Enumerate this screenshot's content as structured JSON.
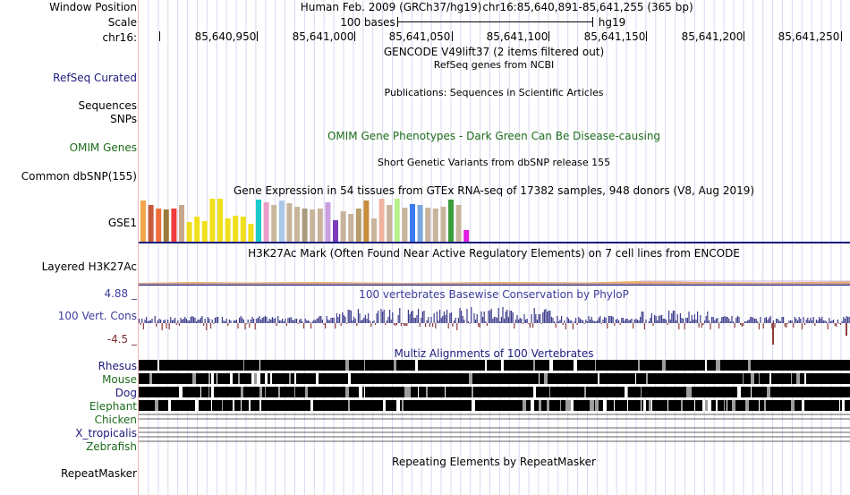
{
  "header": {
    "window_label": "Window Position",
    "scale_label": "Scale",
    "chrom_label": "chr16:",
    "assembly": "Human Feb. 2009 (GRCh37/hg19)",
    "position": "chr16:85,640,891-85,641,255 (365 bp)",
    "scale_text": "100 bases",
    "scale_db": "hg19",
    "ticks": [
      "85,640,950",
      "85,641,000",
      "85,641,050",
      "85,641,100",
      "85,641,150",
      "85,641,200",
      "85,641,250"
    ]
  },
  "tracks": {
    "gencode_title": "GENCODE V49lift37 (2 items filtered out)",
    "refseq_label": "RefSeq Curated",
    "refseq_title": "RefSeq genes from NCBI",
    "pubs_label": "Sequences",
    "pubs_title": "Publications: Sequences in Scientific Articles",
    "snps_label": "SNPs",
    "omim_label": "OMIM Genes",
    "omim_title": "OMIM Gene Phenotypes - Dark Green Can Be Disease-causing",
    "dbsnp_label": "Common dbSNP(155)",
    "dbsnp_title": "Short Genetic Variants from dbSNP release 155",
    "gtex_title": "Gene Expression in 54 tissues from GTEx RNA-seq of 17382 samples, 948 donors (V8, Aug 2019)",
    "gtex_label": "GSE1",
    "h3k27_label": "Layered H3K27Ac",
    "h3k27_title": "H3K27Ac Mark (Often Found Near Active Regulatory Elements) on 7 cell lines from ENCODE",
    "cons_label": "100 Vert. Cons",
    "cons_max": "4.88 _",
    "cons_min": "-4.5 _",
    "cons_title": "100 vertebrates Basewise Conservation by PhyloP",
    "multiz_title": "Multiz Alignments of 100 Vertebrates",
    "species": [
      "Rhesus",
      "Mouse",
      "Dog",
      "Elephant",
      "Chicken",
      "X_tropicalis",
      "Zebrafish"
    ],
    "rmsk_label": "RepeatMasker",
    "rmsk_title": "Repeating Elements by RepeatMasker"
  },
  "gtex_bars": [
    {
      "color": "#f3a64a",
      "value": 0.95
    },
    {
      "color": "#c85a3c",
      "value": 0.85
    },
    {
      "color": "#f06e3c",
      "value": 0.78
    },
    {
      "color": "#9c7b3c",
      "value": 0.75
    },
    {
      "color": "#f03c3c",
      "value": 0.78
    },
    {
      "color": "#c8a88c",
      "value": 0.85
    },
    {
      "color": "#f0e01c",
      "value": 0.45
    },
    {
      "color": "#f0e01c",
      "value": 0.58
    },
    {
      "color": "#f0e01c",
      "value": 0.48
    },
    {
      "color": "#f0e01c",
      "value": 1.0
    },
    {
      "color": "#f0e01c",
      "value": 1.0
    },
    {
      "color": "#f0e01c",
      "value": 0.55
    },
    {
      "color": "#f0e01c",
      "value": 0.6
    },
    {
      "color": "#f0e01c",
      "value": 0.58
    },
    {
      "color": "#f0e01c",
      "value": 0.42
    },
    {
      "color": "#1ccccc",
      "value": 0.98
    },
    {
      "color": "#e8a0c8",
      "value": 0.92
    },
    {
      "color": "#c8b89c",
      "value": 0.85
    },
    {
      "color": "#a8c8e8",
      "value": 0.95
    },
    {
      "color": "#c8b49c",
      "value": 0.9
    },
    {
      "color": "#c8b49c",
      "value": 0.82
    },
    {
      "color": "#a89c7c",
      "value": 0.78
    },
    {
      "color": "#c8b49c",
      "value": 0.75
    },
    {
      "color": "#c8b49c",
      "value": 0.78
    },
    {
      "color": "#c8a0e0",
      "value": 0.92
    },
    {
      "color": "#7c3cbc",
      "value": 0.5
    },
    {
      "color": "#c8b49c",
      "value": 0.7
    },
    {
      "color": "#c8b49c",
      "value": 0.65
    },
    {
      "color": "#b89c6c",
      "value": 0.78
    },
    {
      "color": "#c88c3c",
      "value": 0.95
    },
    {
      "color": "#c8b49c",
      "value": 0.55
    },
    {
      "color": "#f0b4a0",
      "value": 1.0
    },
    {
      "color": "#c8b49c",
      "value": 0.85
    },
    {
      "color": "#b8f08c",
      "value": 1.0
    },
    {
      "color": "#c8b49c",
      "value": 0.8
    },
    {
      "color": "#3c7cf0",
      "value": 0.88
    },
    {
      "color": "#7ca8e0",
      "value": 0.85
    },
    {
      "color": "#c8b49c",
      "value": 0.8
    },
    {
      "color": "#c8b49c",
      "value": 0.78
    },
    {
      "color": "#c8b49c",
      "value": 0.82
    },
    {
      "color": "#3c9c3c",
      "value": 0.98
    },
    {
      "color": "#c8b49c",
      "value": 0.85
    },
    {
      "color": "#e01ce0",
      "value": 0.28
    }
  ]
}
